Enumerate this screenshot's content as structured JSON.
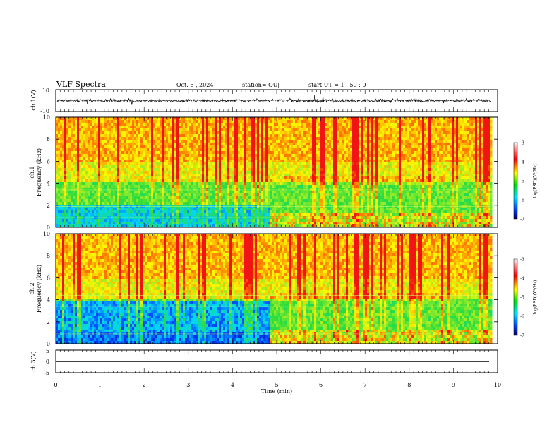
{
  "header": {
    "title": "VLF Spectra",
    "date": "Oct. 6 , 2024",
    "station": "station= OUJ",
    "start": "start UT =  1 : 50 : 0"
  },
  "chart_data": [
    {
      "type": "line",
      "ylabel": "ch.1(V)",
      "ylim": [
        -10,
        10
      ],
      "yticks": [
        "10",
        "-10"
      ],
      "series": [
        {
          "desc_baseline_V": -1.5
        }
      ]
    },
    {
      "type": "heatmap",
      "ylabel": "ch.1\nFrequency (kHz)",
      "ylabel_line1": "ch.1",
      "ylabel_line2": "Frequency (kHz)",
      "ylim": [
        0,
        10
      ],
      "yticks": [
        "0",
        "2",
        "4",
        "6",
        "8",
        "10"
      ],
      "colorbar": {
        "label": "log(PSD)(V²/Hz)",
        "range": [
          -7,
          -3
        ],
        "ticks": [
          "-3",
          "-4",
          "-5",
          "-6",
          "-7"
        ]
      },
      "transition_min": 4.8
    },
    {
      "type": "heatmap",
      "ylabel": "ch.2\nFrequency (kHz)",
      "ylabel_line1": "ch.2",
      "ylabel_line2": "Frequency (kHz)",
      "ylim": [
        0,
        10
      ],
      "yticks": [
        "0",
        "2",
        "4",
        "6",
        "8",
        "10"
      ],
      "colorbar": {
        "label": "log(PSD)(V²/Hz)",
        "range": [
          -7,
          -3
        ],
        "ticks": [
          "-3",
          "-4",
          "-5",
          "-6",
          "-7"
        ]
      },
      "transition_min": 4.8
    },
    {
      "type": "line",
      "ylabel": "ch.3(V)",
      "ylim": [
        -5,
        5
      ],
      "yticks": [
        "5",
        "0",
        "-5"
      ],
      "series": [
        {
          "values_V": -1
        }
      ]
    }
  ],
  "xaxis": {
    "xlabel": "Time (min)",
    "xlim": [
      0,
      10
    ],
    "ticks": [
      "0",
      "1",
      "2",
      "3",
      "4",
      "5",
      "6",
      "7",
      "8",
      "9",
      "10"
    ],
    "data_end_min": 9.85
  },
  "colors": {
    "low": "#0000b0",
    "mid_low": "#00c8ff",
    "mid": "#40e040",
    "mid_high": "#ffff00",
    "high": "#ff2020"
  }
}
